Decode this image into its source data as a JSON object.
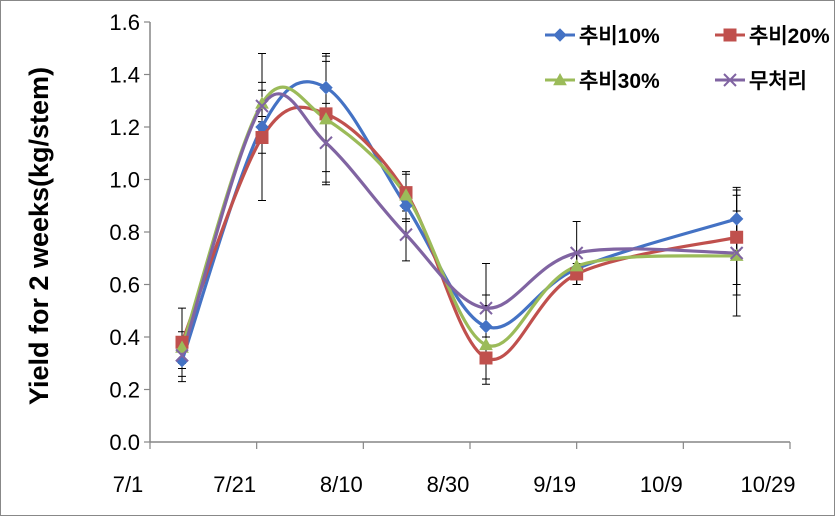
{
  "chart_data": {
    "type": "line",
    "ylabel": "Yield for 2 weeks(kg/stem)",
    "xlabel": "",
    "title": "",
    "x_ticks": [
      "7/1",
      "7/21",
      "8/10",
      "8/30",
      "9/19",
      "10/9",
      "10/29"
    ],
    "y_ticks": [
      "0.0",
      "0.2",
      "0.4",
      "0.6",
      "0.8",
      "1.0",
      "1.2",
      "1.4",
      "1.6"
    ],
    "ylim": [
      0,
      1.6
    ],
    "xlim_days": [
      0,
      120
    ],
    "x_dates": [
      "7/7",
      "7/22",
      "8/3",
      "8/18",
      "9/2",
      "9/19",
      "10/19"
    ],
    "legend_position": "top-right",
    "grid": false,
    "series": [
      {
        "name": "추비10%",
        "color": "#4472C4",
        "marker": "diamond",
        "values": [
          0.31,
          1.2,
          1.35,
          0.9,
          0.44,
          0.66,
          0.85
        ],
        "error": [
          0.08,
          0.28,
          0.1,
          0.06,
          0.12,
          0.06,
          0.12
        ]
      },
      {
        "name": "추비20%",
        "color": "#C0504D",
        "marker": "square",
        "values": [
          0.38,
          1.16,
          1.25,
          0.95,
          0.32,
          0.64,
          0.78
        ],
        "error": [
          0.13,
          0.06,
          0.22,
          0.07,
          0.08,
          0.04,
          0.18
        ]
      },
      {
        "name": "추비30%",
        "color": "#9BBB59",
        "marker": "triangle",
        "values": [
          0.36,
          1.29,
          1.23,
          0.94,
          0.37,
          0.67,
          0.71
        ],
        "error": [
          0.06,
          0.05,
          0.25,
          0.09,
          0.15,
          0.05,
          0.23
        ]
      },
      {
        "name": "무처리",
        "color": "#8064A2",
        "marker": "x",
        "values": [
          0.33,
          1.28,
          1.14,
          0.79,
          0.51,
          0.72,
          0.72
        ],
        "error": [
          0.05,
          0.09,
          0.15,
          0.1,
          0.17,
          0.12,
          0.16
        ]
      }
    ]
  }
}
